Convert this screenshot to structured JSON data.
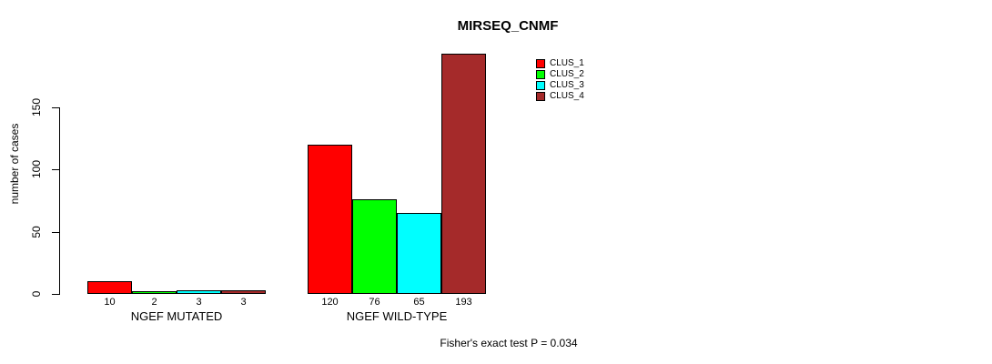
{
  "title": "MIRSEQ_CNMF",
  "footer": "Fisher's exact test P = 0.034",
  "chart_data": {
    "type": "bar",
    "title": "MIRSEQ_CNMF",
    "xlabel": "",
    "ylabel": "number of cases",
    "yticks": [
      0,
      50,
      100,
      150
    ],
    "ylim": [
      0,
      200
    ],
    "grid": false,
    "legend_position": "top-right",
    "categories": [
      "NGEF MUTATED",
      "NGEF WILD-TYPE"
    ],
    "series": [
      {
        "name": "CLUS_1",
        "color": "#ff0000",
        "values": [
          10,
          120
        ]
      },
      {
        "name": "CLUS_2",
        "color": "#00ff00",
        "values": [
          2,
          76
        ]
      },
      {
        "name": "CLUS_3",
        "color": "#00ffff",
        "values": [
          3,
          65
        ]
      },
      {
        "name": "CLUS_4",
        "color": "#a52a2a",
        "values": [
          3,
          193
        ]
      }
    ],
    "groups": [
      {
        "label": "NGEF MUTATED",
        "values": [
          10,
          2,
          3,
          3
        ],
        "value_labels": [
          "10",
          "2",
          "3",
          "3"
        ]
      },
      {
        "label": "NGEF WILD-TYPE",
        "values": [
          120,
          76,
          65,
          193
        ],
        "value_labels": [
          "120",
          "76",
          "65",
          "193"
        ]
      }
    ],
    "legend": [
      {
        "label": "CLUS_1",
        "color": "#ff0000"
      },
      {
        "label": "CLUS_2",
        "color": "#00ff00"
      },
      {
        "label": "CLUS_3",
        "color": "#00ffff"
      },
      {
        "label": "CLUS_4",
        "color": "#a52a2a"
      }
    ],
    "annotation": "Fisher's exact test P = 0.034"
  }
}
